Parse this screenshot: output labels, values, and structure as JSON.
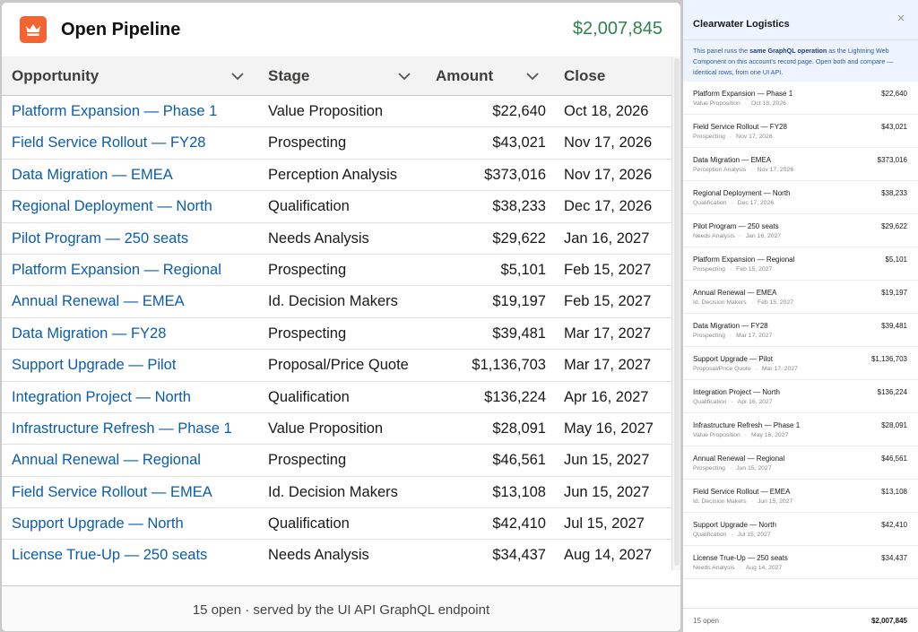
{
  "header": {
    "title": "Open Pipeline",
    "total": "$2,007,845",
    "icon": "crown-icon",
    "icon_color": "#f26532",
    "total_color": "#2e844a"
  },
  "columns": {
    "opportunity": "Opportunity",
    "stage": "Stage",
    "amount": "Amount",
    "close": "Close"
  },
  "rows": [
    {
      "name": "Platform Expansion — Phase 1",
      "stage": "Value Proposition",
      "amount": "$22,640",
      "close": "Oct 18, 2026"
    },
    {
      "name": "Field Service Rollout — FY28",
      "stage": "Prospecting",
      "amount": "$43,021",
      "close": "Nov 17, 2026"
    },
    {
      "name": "Data Migration — EMEA",
      "stage": "Perception Analysis",
      "amount": "$373,016",
      "close": "Nov 17, 2026"
    },
    {
      "name": "Regional Deployment — North",
      "stage": "Qualification",
      "amount": "$38,233",
      "close": "Dec 17, 2026"
    },
    {
      "name": "Pilot Program — 250 seats",
      "stage": "Needs Analysis",
      "amount": "$29,622",
      "close": "Jan 16, 2027"
    },
    {
      "name": "Platform Expansion — Regional",
      "stage": "Prospecting",
      "amount": "$5,101",
      "close": "Feb 15, 2027"
    },
    {
      "name": "Annual Renewal — EMEA",
      "stage": "Id. Decision Makers",
      "amount": "$19,197",
      "close": "Feb 15, 2027"
    },
    {
      "name": "Data Migration — FY28",
      "stage": "Prospecting",
      "amount": "$39,481",
      "close": "Mar 17, 2027"
    },
    {
      "name": "Support Upgrade — Pilot",
      "stage": "Proposal/Price Quote",
      "amount": "$1,136,703",
      "close": "Mar 17, 2027"
    },
    {
      "name": "Integration Project — North",
      "stage": "Qualification",
      "amount": "$136,224",
      "close": "Apr 16, 2027"
    },
    {
      "name": "Infrastructure Refresh — Phase 1",
      "stage": "Value Proposition",
      "amount": "$28,091",
      "close": "May 16, 2027"
    },
    {
      "name": "Annual Renewal — Regional",
      "stage": "Prospecting",
      "amount": "$46,561",
      "close": "Jun 15, 2027"
    },
    {
      "name": "Field Service Rollout — EMEA",
      "stage": "Id. Decision Makers",
      "amount": "$13,108",
      "close": "Jun 15, 2027"
    },
    {
      "name": "Support Upgrade — North",
      "stage": "Qualification",
      "amount": "$42,410",
      "close": "Jul 15, 2027"
    },
    {
      "name": "License True-Up — 250 seats",
      "stage": "Needs Analysis",
      "amount": "$34,437",
      "close": "Aug 14, 2027"
    }
  ],
  "footer": {
    "text": "15 open · served by the UI API GraphQL endpoint"
  },
  "panel": {
    "title": "Clearwater Logistics",
    "note_pre": "This panel runs the ",
    "note_bold": "same GraphQL operation",
    "note_post": " as the Lightning Web Component on this account's record page. Open both and compare — identical rows, from one UI API.",
    "footer_count": "15 open",
    "footer_total": "$2,007,845",
    "rows": [
      {
        "name": "Platform Expansion — Phase 1",
        "stage": "Value Proposition",
        "close": "Oct 18, 2026",
        "amount": "$22,640"
      },
      {
        "name": "Field Service Rollout — FY28",
        "stage": "Prospecting",
        "close": "Nov 17, 2026",
        "amount": "$43,021"
      },
      {
        "name": "Data Migration — EMEA",
        "stage": "Perception Analysis",
        "close": "Nov 17, 2026",
        "amount": "$373,016"
      },
      {
        "name": "Regional Deployment — North",
        "stage": "Qualification",
        "close": "Dec 17, 2026",
        "amount": "$38,233"
      },
      {
        "name": "Pilot Program — 250 seats",
        "stage": "Needs Analysis",
        "close": "Jan 16, 2027",
        "amount": "$29,622"
      },
      {
        "name": "Platform Expansion — Regional",
        "stage": "Prospecting",
        "close": "Feb 15, 2027",
        "amount": "$5,101"
      },
      {
        "name": "Annual Renewal — EMEA",
        "stage": "Id. Decision Makers",
        "close": "Feb 15, 2027",
        "amount": "$19,197"
      },
      {
        "name": "Data Migration — FY28",
        "stage": "Prospecting",
        "close": "Mar 17, 2027",
        "amount": "$39,481"
      },
      {
        "name": "Support Upgrade — Pilot",
        "stage": "Proposal/Price Quote",
        "close": "Mar 17, 2027",
        "amount": "$1,136,703"
      },
      {
        "name": "Integration Project — North",
        "stage": "Qualification",
        "close": "Apr 16, 2027",
        "amount": "$136,224"
      },
      {
        "name": "Infrastructure Refresh — Phase 1",
        "stage": "Value Proposition",
        "close": "May 16, 2027",
        "amount": "$28,091"
      },
      {
        "name": "Annual Renewal — Regional",
        "stage": "Prospecting",
        "close": "Jun 15, 2027",
        "amount": "$46,561"
      },
      {
        "name": "Field Service Rollout — EMEA",
        "stage": "Id. Decision Makers",
        "close": "Jun 15, 2027",
        "amount": "$13,108"
      },
      {
        "name": "Support Upgrade — North",
        "stage": "Qualification",
        "close": "Jul 15, 2027",
        "amount": "$42,410"
      },
      {
        "name": "License True-Up — 250 seats",
        "stage": "Needs Analysis",
        "close": "Aug 14, 2027",
        "amount": "$34,437"
      }
    ]
  }
}
